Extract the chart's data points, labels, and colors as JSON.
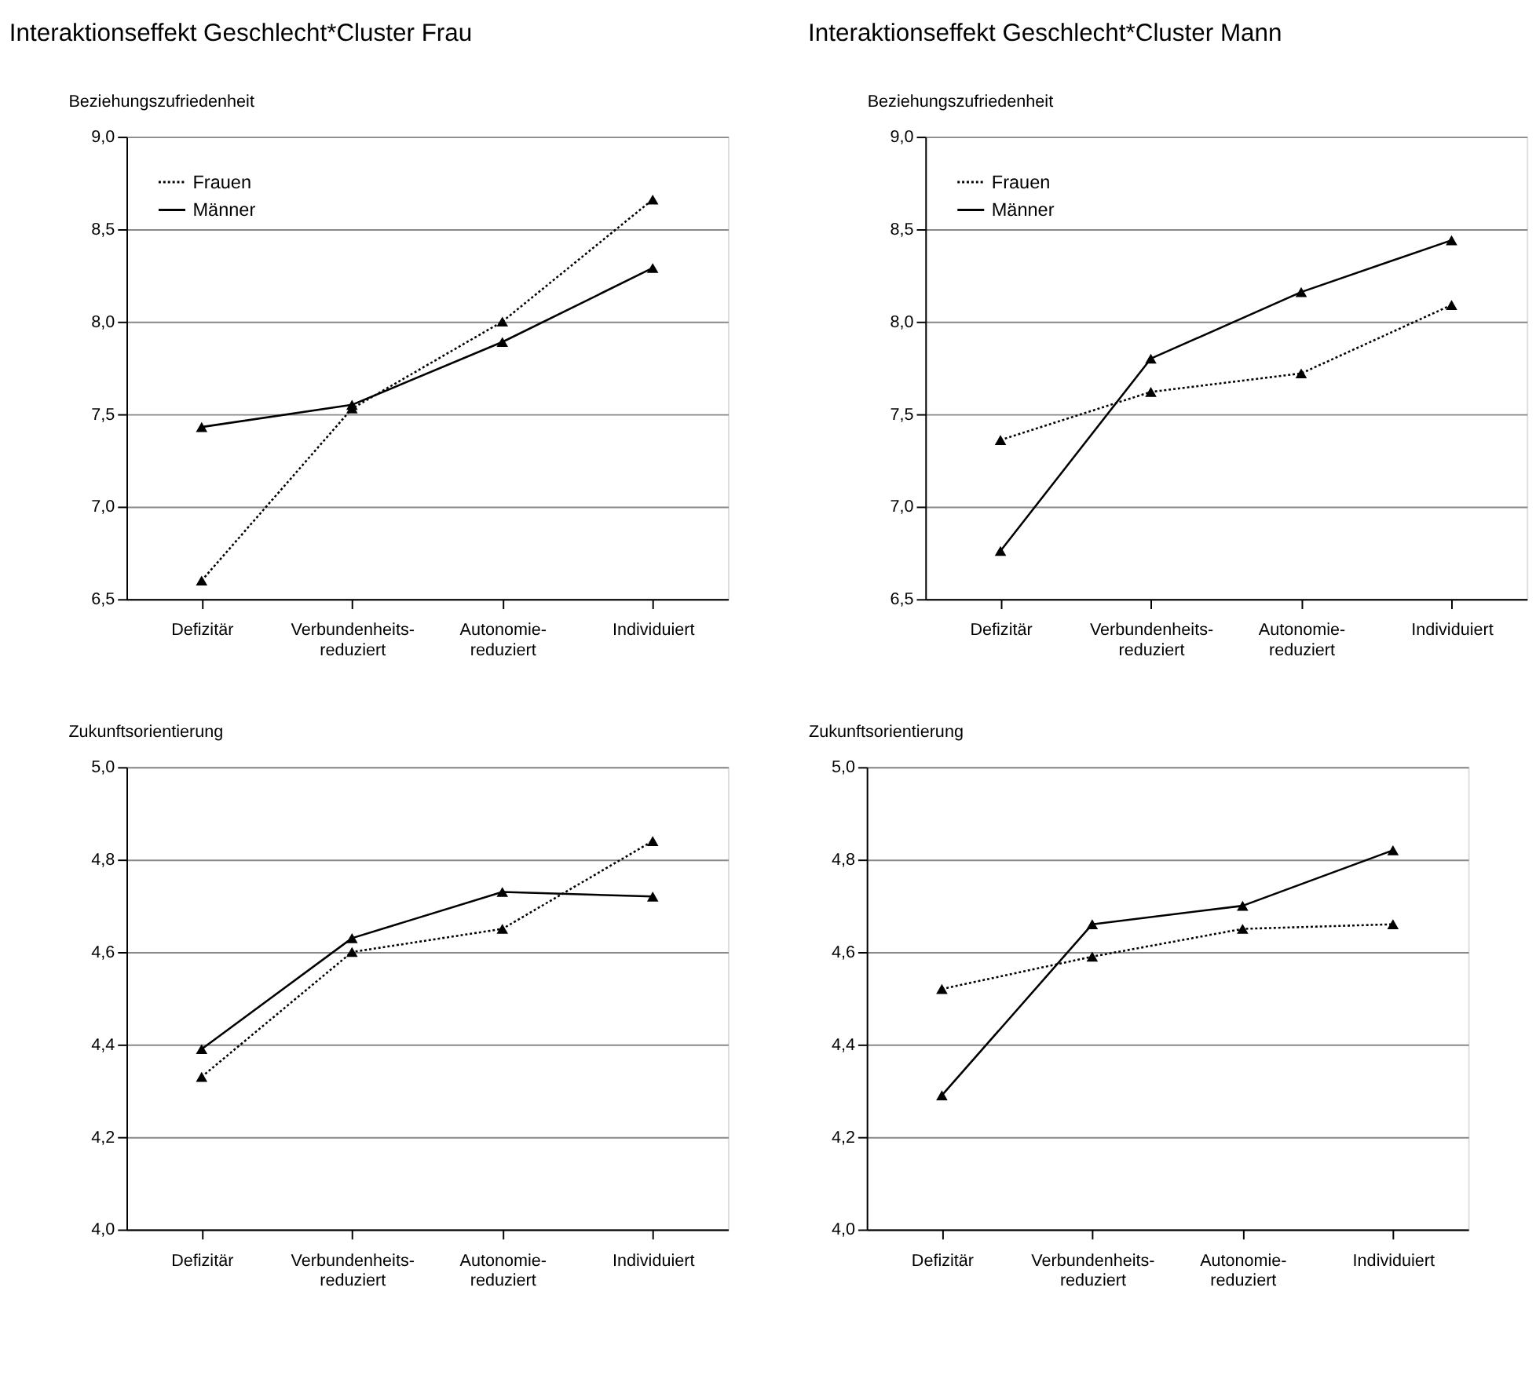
{
  "chart_data": [
    {
      "type": "line",
      "title": "Interaktionseffekt Geschlecht*Cluster Frau",
      "ylabel": "Beziehungszufriedenheit",
      "categories": [
        "Defizitär",
        "Verbundenheits-\nreduziert",
        "Autonomie-\nreduziert",
        "Individuiert"
      ],
      "series": [
        {
          "name": "Frauen",
          "color": "#000000",
          "line_style": "dotted",
          "values": [
            6.6,
            7.53,
            8.0,
            8.66
          ]
        },
        {
          "name": "Männer",
          "color": "#000000",
          "line_style": "solid",
          "values": [
            7.43,
            7.55,
            7.89,
            8.29
          ]
        }
      ],
      "ylim": [
        6.5,
        9.0
      ],
      "yticks": [
        {
          "value": 6.5,
          "label": "6,5"
        },
        {
          "value": 7.0,
          "label": "7,0"
        },
        {
          "value": 7.5,
          "label": "7,5"
        },
        {
          "value": 8.0,
          "label": "8,0"
        },
        {
          "value": 8.5,
          "label": "8,5"
        },
        {
          "value": 9.0,
          "label": "9,0"
        }
      ],
      "grid": "y",
      "legend": "top left",
      "marker": "triangle"
    },
    {
      "type": "line",
      "title": "Interaktionseffekt Geschlecht*Cluster Mann",
      "ylabel": "Beziehungszufriedenheit",
      "categories": [
        "Defizitär",
        "Verbundenheits-\nreduziert",
        "Autonomie-\nreduziert",
        "Individuiert"
      ],
      "series": [
        {
          "name": "Frauen",
          "color": "#000000",
          "line_style": "dotted",
          "values": [
            7.36,
            7.62,
            7.72,
            8.09
          ]
        },
        {
          "name": "Männer",
          "color": "#000000",
          "line_style": "solid",
          "values": [
            6.76,
            7.8,
            8.16,
            8.44
          ]
        }
      ],
      "ylim": [
        6.5,
        9.0
      ],
      "yticks": [
        {
          "value": 6.5,
          "label": "6,5"
        },
        {
          "value": 7.0,
          "label": "7,0"
        },
        {
          "value": 7.5,
          "label": "7,5"
        },
        {
          "value": 8.0,
          "label": "8,0"
        },
        {
          "value": 8.5,
          "label": "8,5"
        },
        {
          "value": 9.0,
          "label": "9,0"
        }
      ],
      "grid": "y",
      "legend": "top left",
      "marker": "triangle"
    },
    {
      "type": "line",
      "ylabel": "Zukunftsorientierung",
      "categories": [
        "Defizitär",
        "Verbundenheits-\nreduziert",
        "Autonomie-\nreduziert",
        "Individuiert"
      ],
      "series": [
        {
          "color": "#000000",
          "line_style": "dotted",
          "values": [
            4.33,
            4.6,
            4.65,
            4.84
          ]
        },
        {
          "color": "#000000",
          "line_style": "solid",
          "values": [
            4.39,
            4.63,
            4.73,
            4.72
          ]
        }
      ],
      "ylim": [
        4.0,
        5.0
      ],
      "yticks": [
        {
          "value": 4.0,
          "label": "4,0"
        },
        {
          "value": 4.2,
          "label": "4,2"
        },
        {
          "value": 4.4,
          "label": "4,4"
        },
        {
          "value": 4.6,
          "label": "4,6"
        },
        {
          "value": 4.8,
          "label": "4,8"
        },
        {
          "value": 5.0,
          "label": "5,0"
        }
      ],
      "grid": "y",
      "marker": "triangle"
    },
    {
      "type": "line",
      "ylabel": "Zukunftsorientierung",
      "categories": [
        "Defizitär",
        "Verbundenheits-\nreduziert",
        "Autonomie-\nreduziert",
        "Individuiert"
      ],
      "series": [
        {
          "color": "#000000",
          "line_style": "dotted",
          "values": [
            4.52,
            4.59,
            4.65,
            4.66
          ]
        },
        {
          "color": "#000000",
          "line_style": "solid",
          "values": [
            4.29,
            4.66,
            4.7,
            4.82
          ]
        }
      ],
      "ylim": [
        4.0,
        5.0
      ],
      "yticks": [
        {
          "value": 4.0,
          "label": "4,0"
        },
        {
          "value": 4.2,
          "label": "4,2"
        },
        {
          "value": 4.4,
          "label": "4,4"
        },
        {
          "value": 4.6,
          "label": "4,6"
        },
        {
          "value": 4.8,
          "label": "4,8"
        },
        {
          "value": 5.0,
          "label": "5,0"
        }
      ],
      "grid": "y",
      "marker": "triangle"
    }
  ]
}
